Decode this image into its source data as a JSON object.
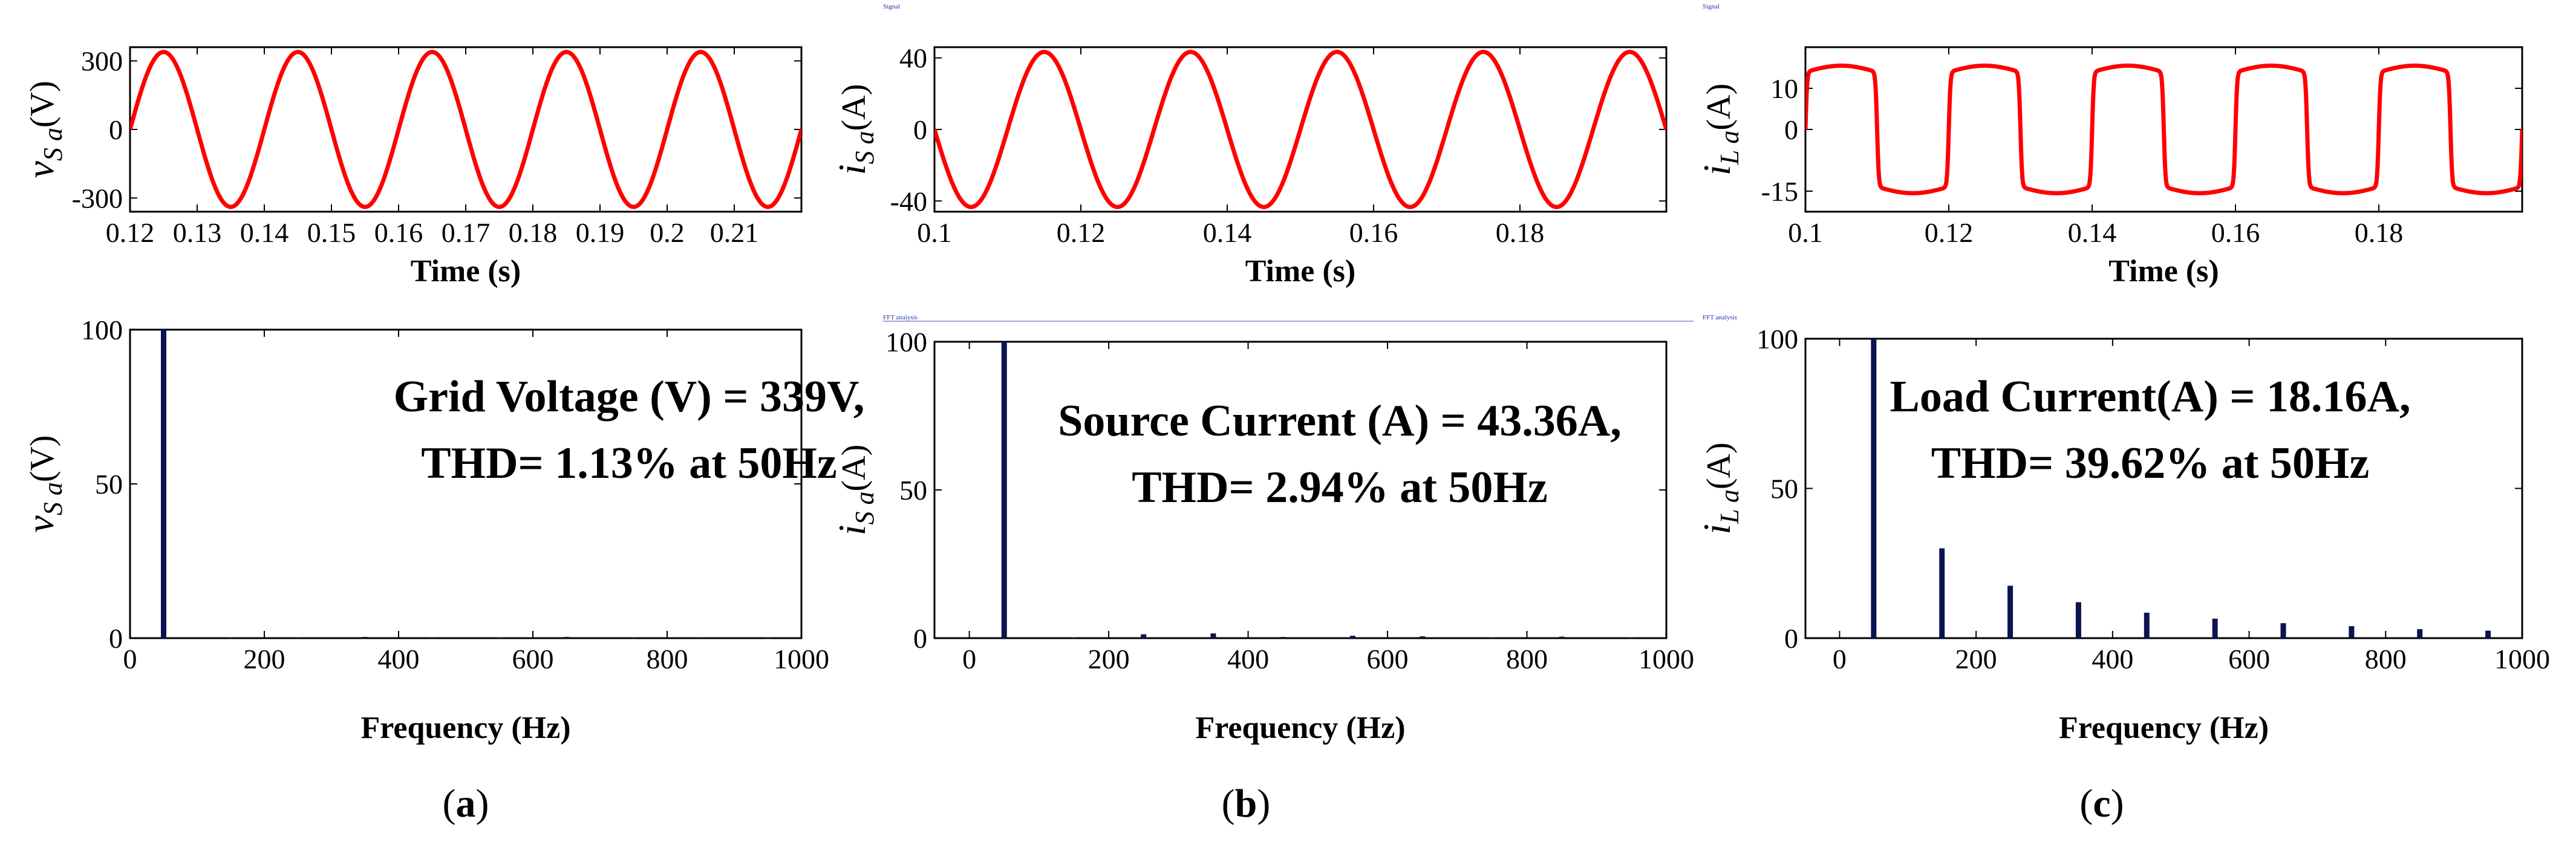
{
  "chart_data": [
    {
      "id": "a-top",
      "type": "line",
      "xlabel": "Time (s)",
      "ylabel": {
        "var": "v",
        "sub": "S a",
        "unit": "(V)"
      },
      "xlim": [
        0.12,
        0.22
      ],
      "ylim": [
        -360,
        360
      ],
      "xticks": [
        0.12,
        0.13,
        0.14,
        0.15,
        0.16,
        0.17,
        0.18,
        0.19,
        0.2,
        0.21
      ],
      "xticklabels": [
        "0.12",
        "0.13",
        "0.14",
        "0.15",
        "0.16",
        "0.17",
        "0.18",
        "0.19",
        "0.2",
        "0.21"
      ],
      "yticks": [
        -300,
        0,
        300
      ],
      "yticklabels": [
        "-300",
        "0",
        "300"
      ],
      "series": [
        {
          "name": "vSa",
          "waveform": "sine",
          "amplitude": 339,
          "frequency_hz": 50,
          "phase_deg": 0,
          "color": "#ff0000"
        }
      ]
    },
    {
      "id": "b-top",
      "type": "line",
      "xlabel": "Time (s)",
      "ylabel": {
        "var": "i",
        "sub": "S a",
        "unit": "(A)"
      },
      "xlim": [
        0.1,
        0.2
      ],
      "ylim": [
        -46,
        46
      ],
      "xticks": [
        0.1,
        0.12,
        0.14,
        0.16,
        0.18
      ],
      "xticklabels": [
        "0.1",
        "0.12",
        "0.14",
        "0.16",
        "0.18"
      ],
      "yticks": [
        -40,
        0,
        40
      ],
      "yticklabels": [
        "-40",
        "0",
        "40"
      ],
      "series": [
        {
          "name": "iSa",
          "waveform": "sine",
          "amplitude": 43.36,
          "frequency_hz": 50,
          "phase_deg": 180,
          "color": "#ff0000"
        }
      ]
    },
    {
      "id": "c-top",
      "type": "line",
      "xlabel": "Time (s)",
      "ylabel": {
        "var": "i",
        "sub": "L a",
        "unit": "(A)"
      },
      "xlim": [
        0.1,
        0.2
      ],
      "ylim": [
        -20,
        20
      ],
      "xticks": [
        0.1,
        0.12,
        0.14,
        0.16,
        0.18
      ],
      "xticklabels": [
        "0.1",
        "0.12",
        "0.14",
        "0.16",
        "0.18"
      ],
      "yticks": [
        -15,
        0,
        10
      ],
      "yticklabels": [
        "-15",
        "0",
        "10"
      ],
      "series": [
        {
          "name": "iLa",
          "waveform": "square",
          "amplitude": 15.5,
          "frequency_hz": 50,
          "phase_deg": 0,
          "color": "#ff0000"
        }
      ]
    },
    {
      "id": "a-bottom",
      "type": "bar",
      "xlabel": "Frequency (Hz)",
      "ylabel": {
        "var": "v",
        "sub": "S a",
        "unit": "(V)"
      },
      "xlim": [
        0,
        1000
      ],
      "ylim": [
        0,
        100
      ],
      "xticks": [
        0,
        200,
        400,
        600,
        800,
        1000
      ],
      "xticklabels": [
        "0",
        "200",
        "400",
        "600",
        "800",
        "1000"
      ],
      "yticks": [
        0,
        50,
        100
      ],
      "yticklabels": [
        "0",
        "50",
        "100"
      ],
      "x": [
        50,
        150,
        250,
        350,
        450,
        550,
        650,
        750,
        850,
        950
      ],
      "values": [
        100,
        0.2,
        0.3,
        0.4,
        0.3,
        0.2,
        0.4,
        0.2,
        0.3,
        0.2
      ],
      "annotation": [
        "Grid Voltage (V)  = 339V,",
        "THD= 1.13% at 50Hz"
      ],
      "caption": "a"
    },
    {
      "id": "b-bottom",
      "type": "bar",
      "xlabel": "Frequency (Hz)",
      "ylabel": {
        "var": "i",
        "sub": "S a",
        "unit": "(A)"
      },
      "xlim": [
        -50,
        1000
      ],
      "ylim": [
        0,
        100
      ],
      "xticks": [
        0,
        200,
        400,
        600,
        800,
        1000
      ],
      "xticklabels": [
        "0",
        "200",
        "400",
        "600",
        "800",
        "1000"
      ],
      "yticks": [
        0,
        50,
        100
      ],
      "yticklabels": [
        "0",
        "50",
        "100"
      ],
      "x": [
        50,
        150,
        250,
        350,
        450,
        550,
        650,
        750,
        850,
        950
      ],
      "values": [
        100,
        0.3,
        1.3,
        1.6,
        0.4,
        0.8,
        0.6,
        0.3,
        0.5,
        0.3
      ],
      "annotation": [
        "Source Current (A) = 43.36A,",
        "THD= 2.94% at 50Hz"
      ],
      "caption": "b"
    },
    {
      "id": "c-bottom",
      "type": "bar",
      "xlabel": "Frequency (Hz)",
      "ylabel": {
        "var": "i",
        "sub": "L a",
        "unit": "(A)"
      },
      "xlim": [
        -50,
        1000
      ],
      "ylim": [
        0,
        100
      ],
      "xticks": [
        0,
        200,
        400,
        600,
        800,
        1000
      ],
      "xticklabels": [
        "0",
        "200",
        "400",
        "600",
        "800",
        "1000"
      ],
      "yticks": [
        0,
        50,
        100
      ],
      "yticklabels": [
        "0",
        "50",
        "100"
      ],
      "x": [
        50,
        150,
        250,
        350,
        450,
        550,
        650,
        750,
        850,
        950
      ],
      "values": [
        100,
        30,
        17.5,
        12,
        8.5,
        6.5,
        5,
        4,
        3,
        2.5
      ],
      "annotation": [
        "Load Current(A) = 18.16A,",
        "THD= 39.62% at 50Hz"
      ],
      "caption": "c"
    }
  ],
  "captions": {
    "open": "(",
    "close": ")"
  },
  "tiny_labels": {
    "signal": "Signal",
    "fft": "FFT analysis"
  },
  "colors": {
    "waveform": "#ff0000",
    "bars": "#0a1450",
    "axis": "#000000"
  }
}
